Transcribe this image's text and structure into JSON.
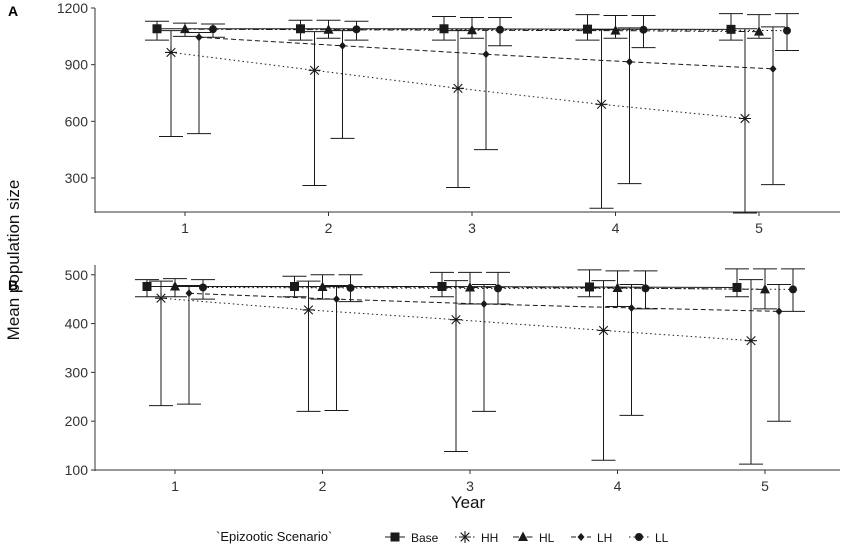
{
  "chart_data": [
    {
      "panel": "A",
      "type": "line",
      "xlabel": "",
      "ylabel": "Mean population size",
      "categories": [
        1,
        2,
        3,
        4,
        5
      ],
      "ylim": [
        120,
        1200
      ],
      "yticks": [
        300,
        600,
        900,
        1200
      ],
      "grid": false,
      "series": [
        {
          "name": "Base",
          "values": [
            1090,
            1090,
            1090,
            1088,
            1087
          ],
          "lower": [
            1030,
            1030,
            1030,
            1030,
            1030
          ],
          "upper": [
            1130,
            1135,
            1155,
            1165,
            1170
          ]
        },
        {
          "name": "HH",
          "values": [
            965,
            870,
            775,
            690,
            615
          ],
          "lower": [
            520,
            260,
            250,
            140,
            115
          ],
          "upper": [
            1080,
            1075,
            1080,
            1085,
            1090
          ]
        },
        {
          "name": "HL",
          "values": [
            1088,
            1085,
            1082,
            1080,
            1075
          ],
          "lower": [
            1050,
            1040,
            1040,
            1040,
            1040
          ],
          "upper": [
            1120,
            1135,
            1150,
            1160,
            1165
          ]
        },
        {
          "name": "LH",
          "values": [
            1045,
            1000,
            955,
            915,
            878
          ],
          "lower": [
            535,
            510,
            450,
            270,
            265
          ],
          "upper": [
            1070,
            1080,
            1090,
            1095,
            1100
          ]
        },
        {
          "name": "LL",
          "values": [
            1088,
            1087,
            1085,
            1085,
            1080
          ],
          "lower": [
            1045,
            1030,
            1000,
            990,
            975
          ],
          "upper": [
            1115,
            1130,
            1150,
            1160,
            1170
          ]
        }
      ]
    },
    {
      "panel": "B",
      "type": "line",
      "xlabel": "Year",
      "ylabel": "",
      "categories": [
        1,
        2,
        3,
        4,
        5
      ],
      "ylim": [
        100,
        520
      ],
      "yticks": [
        100,
        200,
        300,
        400,
        500
      ],
      "grid": false,
      "series": [
        {
          "name": "Base",
          "values": [
            476,
            476,
            476,
            475,
            474
          ],
          "lower": [
            455,
            455,
            455,
            455,
            455
          ],
          "upper": [
            490,
            497,
            505,
            510,
            512
          ]
        },
        {
          "name": "HH",
          "values": [
            452,
            428,
            408,
            386,
            365
          ],
          "lower": [
            232,
            220,
            138,
            120,
            112
          ],
          "upper": [
            487,
            487,
            488,
            488,
            490
          ]
        },
        {
          "name": "HL",
          "values": [
            476,
            475,
            474,
            473,
            470
          ],
          "lower": [
            455,
            450,
            440,
            435,
            430
          ],
          "upper": [
            492,
            500,
            505,
            508,
            512
          ]
        },
        {
          "name": "LH",
          "values": [
            462,
            450,
            440,
            432,
            425
          ],
          "lower": [
            235,
            222,
            220,
            212,
            200
          ],
          "upper": [
            478,
            478,
            480,
            480,
            480
          ]
        },
        {
          "name": "LL",
          "values": [
            474,
            473,
            472,
            472,
            470
          ],
          "lower": [
            450,
            445,
            440,
            430,
            425
          ],
          "upper": [
            490,
            500,
            505,
            508,
            512
          ]
        }
      ]
    }
  ],
  "legend": {
    "title": "`Epizootic Scenario`",
    "placement": "bottom",
    "items": [
      {
        "name": "Base",
        "marker": "square",
        "linestyle": "solid"
      },
      {
        "name": "HH",
        "marker": "asterisk",
        "linestyle": "dotted"
      },
      {
        "name": "HL",
        "marker": "triangle",
        "linestyle": "dotdash"
      },
      {
        "name": "LH",
        "marker": "diamond",
        "linestyle": "dashed"
      },
      {
        "name": "LL",
        "marker": "circle",
        "linestyle": "dotted"
      }
    ]
  },
  "styles": {
    "ink": "#1a1a1a",
    "axis": "#333333",
    "background": "#ffffff"
  }
}
